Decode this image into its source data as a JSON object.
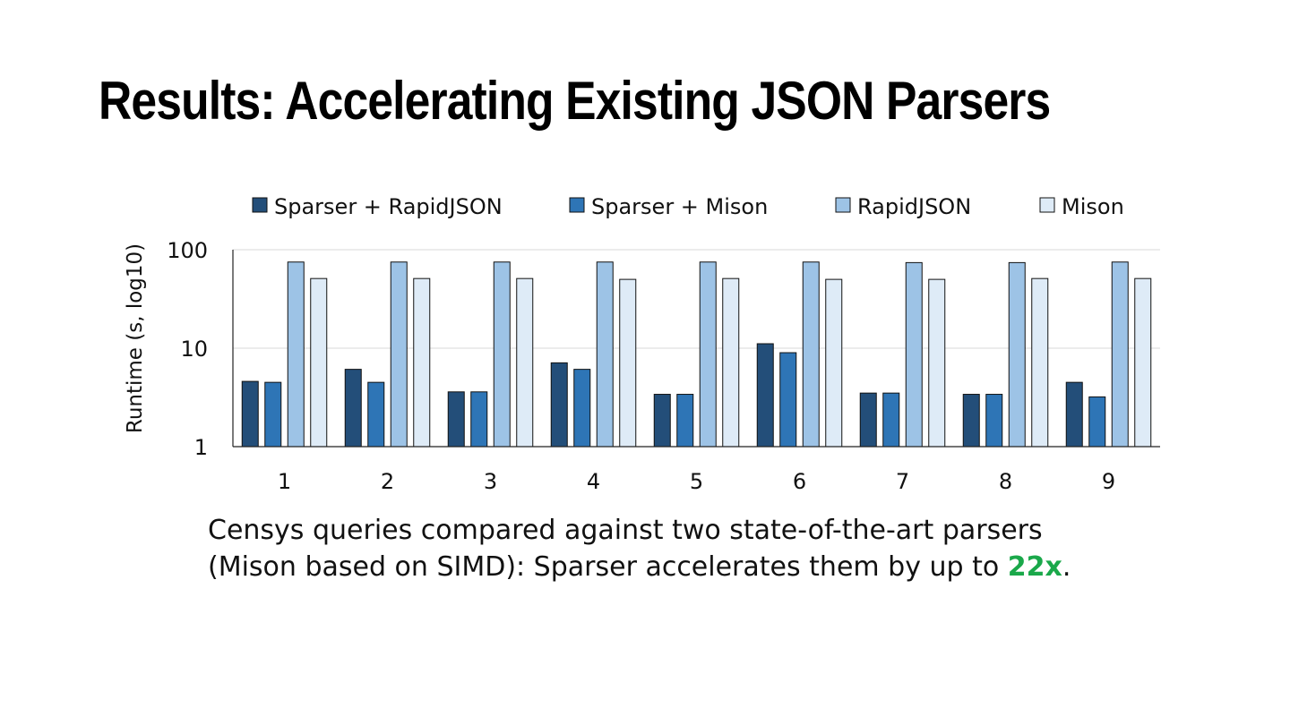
{
  "slide": {
    "title": "Results: Accelerating Existing JSON Parsers"
  },
  "caption": {
    "line1": "Censys queries compared against two state-of-the-art parsers",
    "line2_pre": "(Mison based on SIMD): Sparser accelerates them by up to ",
    "line2_highlight": "22x",
    "line2_post": ".",
    "highlight_color": "#1aa84a"
  },
  "chart_data": {
    "type": "bar",
    "ylabel": "Runtime (s, log10)",
    "xlabel": "",
    "yscale": "log10",
    "ylim": [
      1,
      100
    ],
    "yticks": [
      "1",
      "10",
      "100"
    ],
    "grid": true,
    "legend_position": "top",
    "categories": [
      "1",
      "2",
      "3",
      "4",
      "5",
      "6",
      "7",
      "8",
      "9"
    ],
    "series": [
      {
        "name": "Sparser + RapidJSON",
        "color": "#234e79",
        "values": [
          4.6,
          6.1,
          3.6,
          7.1,
          3.4,
          11.1,
          3.5,
          3.4,
          4.5
        ]
      },
      {
        "name": "Sparser + Mison",
        "color": "#2e75b6",
        "values": [
          4.5,
          4.5,
          3.6,
          6.1,
          3.4,
          9.0,
          3.5,
          3.4,
          3.2
        ]
      },
      {
        "name": "RapidJSON",
        "color": "#9dc3e6",
        "values": [
          75,
          75,
          75,
          75,
          75,
          75,
          74,
          74,
          75
        ]
      },
      {
        "name": "Mison",
        "color": "#deebf7",
        "values": [
          51,
          51,
          51,
          50,
          51,
          50,
          50,
          51,
          51
        ]
      }
    ]
  }
}
